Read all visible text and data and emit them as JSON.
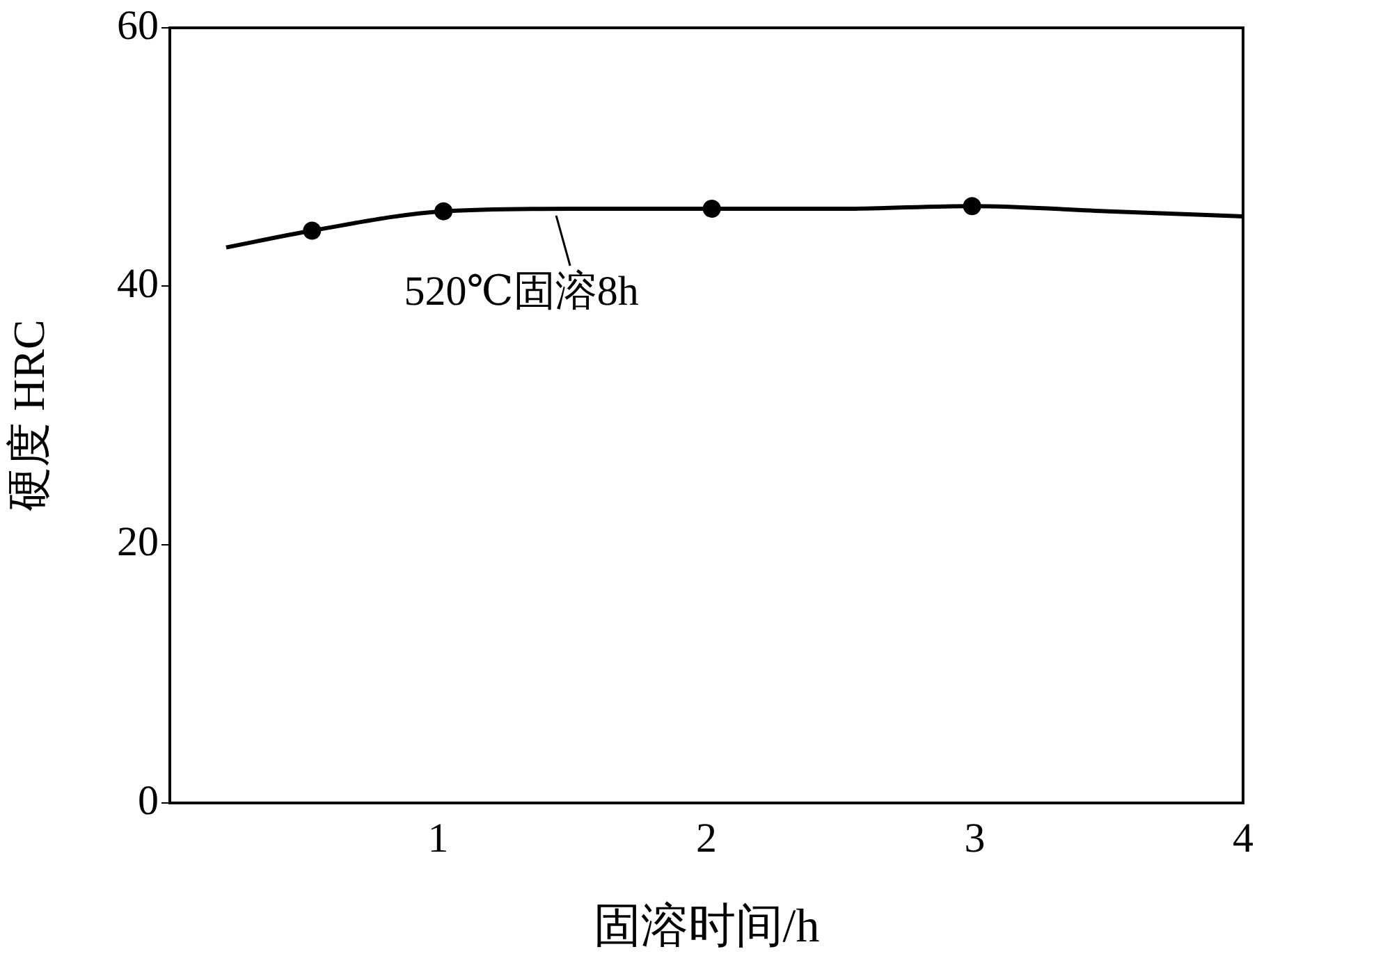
{
  "chart_data": {
    "type": "line",
    "xlabel": "固溶时间/h",
    "ylabel": "硬度 HRC",
    "xlim": [
      0,
      4
    ],
    "xticks": [
      1,
      2,
      3,
      4
    ],
    "ylim": [
      0,
      60
    ],
    "yticks": [
      0,
      20,
      40,
      60
    ],
    "grid": false,
    "legend": false,
    "series": [
      {
        "type": "line",
        "color": "#000000",
        "marker": "none",
        "x": [
          0.21,
          0.53,
          1.02,
          1.5,
          2.02,
          2.5,
          2.99,
          3.5,
          4.0
        ],
        "values": [
          43.0,
          44.3,
          45.8,
          46.0,
          46.0,
          46.0,
          46.2,
          45.8,
          45.4
        ]
      },
      {
        "type": "scatter",
        "color": "#000000",
        "marker": "circle",
        "x": [
          0.53,
          1.02,
          2.02,
          2.99
        ],
        "values": [
          44.3,
          45.8,
          46.0,
          46.2
        ]
      }
    ],
    "annotations": [
      {
        "text": "520℃固溶8h",
        "x": 1.44,
        "y": 45.9
      }
    ]
  }
}
